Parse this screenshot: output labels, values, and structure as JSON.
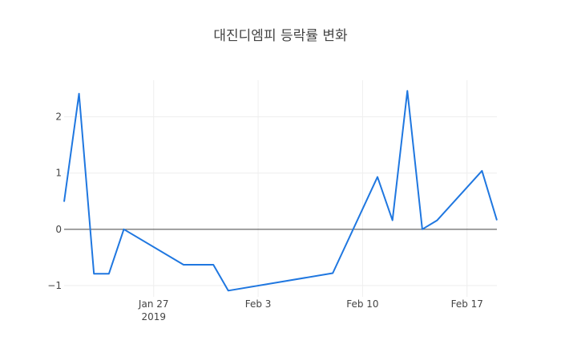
{
  "chart_data": {
    "type": "line",
    "title": "대진디엠피 등락률 변화",
    "xlabel": "",
    "ylabel": "",
    "x_range": [
      "2019-01-21",
      "2019-02-19"
    ],
    "ylim": [
      -1.2,
      2.65
    ],
    "grid": true,
    "legend": "none",
    "line_color": "#1f77e0",
    "zero_line_color": "#444444",
    "grid_color": "#eeeeee",
    "x_ticks": [
      {
        "date": "2019-01-27",
        "label": "Jan 27",
        "sublabel": "2019"
      },
      {
        "date": "2019-02-03",
        "label": "Feb 3",
        "sublabel": ""
      },
      {
        "date": "2019-02-10",
        "label": "Feb 10",
        "sublabel": ""
      },
      {
        "date": "2019-02-17",
        "label": "Feb 17",
        "sublabel": ""
      }
    ],
    "y_ticks": [
      {
        "value": 2,
        "label": "2"
      },
      {
        "value": 1,
        "label": "1"
      },
      {
        "value": 0,
        "label": "0"
      },
      {
        "value": -1,
        "label": "−1"
      }
    ],
    "series": [
      {
        "x": [
          "2019-01-21",
          "2019-01-22",
          "2019-01-23",
          "2019-01-24",
          "2019-01-25",
          "2019-01-29",
          "2019-01-31",
          "2019-02-01",
          "2019-02-08",
          "2019-02-11",
          "2019-02-12",
          "2019-02-13",
          "2019-02-14",
          "2019-02-15",
          "2019-02-18",
          "2019-02-19"
        ],
        "y": [
          0.49,
          2.41,
          -0.79,
          -0.79,
          0.0,
          -0.63,
          -0.63,
          -1.09,
          -0.78,
          0.93,
          0.16,
          2.46,
          0.0,
          0.16,
          1.04,
          0.16
        ]
      }
    ]
  }
}
